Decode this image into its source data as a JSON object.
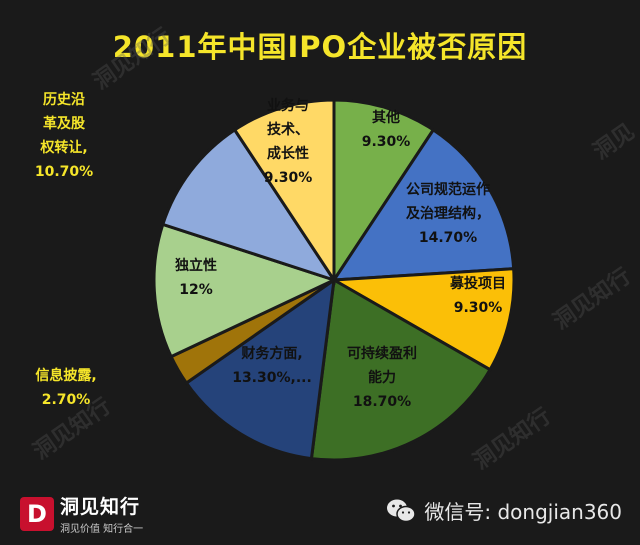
{
  "title": "2011年中国IPO企业被否原因",
  "brand": {
    "name": "洞见知行",
    "slogan": "洞见价值  知行合一",
    "watermark": "洞见知行"
  },
  "wechat": {
    "text": "微信号: dongjian360",
    "icon": "wechat-icon"
  },
  "chart_data": {
    "type": "pie",
    "title": "2011年中国IPO企业被否原因",
    "slices": [
      {
        "label": [
          "其他",
          "9.30%"
        ],
        "value": 9.3,
        "color": "#77b04a"
      },
      {
        "label": [
          "公司规范运作",
          "及治理结构，",
          "14.70%"
        ],
        "value": 14.7,
        "color": "#4472c4"
      },
      {
        "label": [
          "募投项目",
          "9.30%"
        ],
        "value": 9.3,
        "color": "#fbbf07"
      },
      {
        "label": [
          "可持续盈利",
          "能力",
          "18.70%"
        ],
        "value": 18.7,
        "color": "#3d6f25"
      },
      {
        "label": [
          "财务方面,",
          "13.30%,..."
        ],
        "value": 13.3,
        "color": "#25437a"
      },
      {
        "label": [
          "信息披露,",
          "2.70%"
        ],
        "value": 2.7,
        "color": "#a0740a"
      },
      {
        "label": [
          "独立性",
          "12%"
        ],
        "value": 12.0,
        "color": "#a8d08d"
      },
      {
        "label": [
          "历史沿",
          "革及股",
          "权转让,",
          "10.70%"
        ],
        "value": 10.7,
        "color": "#8faadc"
      },
      {
        "label": [
          "业务与",
          "技术、",
          "成长性",
          "9.30%"
        ],
        "value": 9.3,
        "color": "#ffd966"
      }
    ]
  }
}
